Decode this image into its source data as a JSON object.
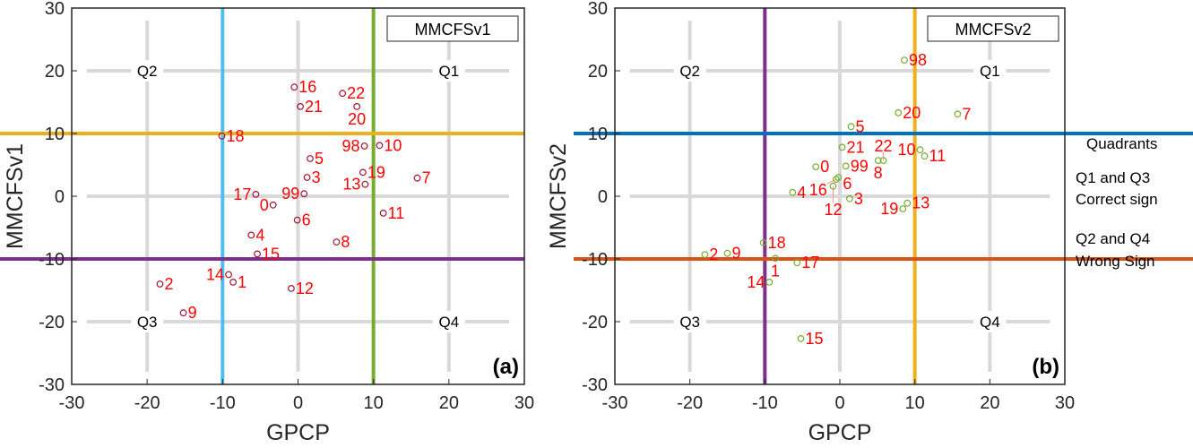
{
  "chart_data": [
    {
      "type": "scatter",
      "panel_label": "(a)",
      "legend": "MMCFSv1",
      "xlabel": "GPCP",
      "ylabel": "MMCFSv1",
      "xlim": [
        -30,
        30
      ],
      "ylim": [
        -30,
        30
      ],
      "xticks": [
        -30,
        -20,
        -10,
        0,
        10,
        20,
        30
      ],
      "yticks": [
        -30,
        -20,
        -10,
        0,
        10,
        20,
        30
      ],
      "quadrant_labels": [
        "Q1",
        "Q2",
        "Q3",
        "Q4"
      ],
      "marker_color": "#a2142f",
      "ref_lines": [
        {
          "axis": "x",
          "value": -10,
          "color": "#4dbeee"
        },
        {
          "axis": "x",
          "value": 10,
          "color": "#77ac30"
        },
        {
          "axis": "y",
          "value": 10,
          "color": "#edb120"
        },
        {
          "axis": "y",
          "value": -10,
          "color": "#7e2f8e"
        }
      ],
      "points": [
        {
          "label": "16",
          "x": -0.5,
          "y": 17.4
        },
        {
          "label": "22",
          "x": 5.9,
          "y": 16.4
        },
        {
          "label": "21",
          "x": 0.3,
          "y": 14.3
        },
        {
          "label": "20",
          "x": 7.8,
          "y": 14.3
        },
        {
          "label": "18",
          "x": -10.1,
          "y": 9.6
        },
        {
          "label": "98",
          "x": 8.8,
          "y": 8.0
        },
        {
          "label": "10",
          "x": 10.8,
          "y": 8.1
        },
        {
          "label": "5",
          "x": 1.6,
          "y": 6.0
        },
        {
          "label": "3",
          "x": 1.2,
          "y": 3.0
        },
        {
          "label": "19",
          "x": 8.6,
          "y": 3.8
        },
        {
          "label": "13",
          "x": 8.9,
          "y": 1.9
        },
        {
          "label": "7",
          "x": 15.8,
          "y": 2.9
        },
        {
          "label": "17",
          "x": -5.6,
          "y": 0.3
        },
        {
          "label": "99",
          "x": 0.8,
          "y": 0.4
        },
        {
          "label": "0",
          "x": -3.3,
          "y": -1.4
        },
        {
          "label": "6",
          "x": -0.1,
          "y": -3.8
        },
        {
          "label": "11",
          "x": 11.3,
          "y": -2.7
        },
        {
          "label": "4",
          "x": -6.2,
          "y": -6.2
        },
        {
          "label": "8",
          "x": 5.1,
          "y": -7.3
        },
        {
          "label": "15",
          "x": -5.4,
          "y": -9.2
        },
        {
          "label": "14",
          "x": -9.2,
          "y": -12.5
        },
        {
          "label": "1",
          "x": -8.6,
          "y": -13.7
        },
        {
          "label": "2",
          "x": -18.3,
          "y": -14.0
        },
        {
          "label": "12",
          "x": -0.9,
          "y": -14.7
        },
        {
          "label": "9",
          "x": -15.2,
          "y": -18.6
        }
      ]
    },
    {
      "type": "scatter",
      "panel_label": "(b)",
      "legend": "MMCFSv2",
      "xlabel": "GPCP",
      "ylabel": "MMCFSv2",
      "xlim": [
        -30,
        30
      ],
      "ylim": [
        -30,
        30
      ],
      "xticks": [
        -30,
        -20,
        -10,
        0,
        10,
        20,
        30
      ],
      "yticks": [
        -30,
        -20,
        -10,
        0,
        10,
        20,
        30
      ],
      "quadrant_labels": [
        "Q1",
        "Q2",
        "Q3",
        "Q4"
      ],
      "marker_color": "#77ac30",
      "ref_lines": [
        {
          "axis": "x",
          "value": -10,
          "color": "#7e2f8e"
        },
        {
          "axis": "x",
          "value": 10,
          "color": "#edb120"
        },
        {
          "axis": "y",
          "value": 10,
          "color": "#0072bd"
        },
        {
          "axis": "y",
          "value": -10,
          "color": "#d95319"
        }
      ],
      "points": [
        {
          "label": "98",
          "x": 8.6,
          "y": 21.7
        },
        {
          "label": "20",
          "x": 7.8,
          "y": 13.3
        },
        {
          "label": "7",
          "x": 15.7,
          "y": 13.1
        },
        {
          "label": "5",
          "x": 1.5,
          "y": 11.1
        },
        {
          "label": "21",
          "x": 0.3,
          "y": 7.8
        },
        {
          "label": "10",
          "x": 10.7,
          "y": 7.4
        },
        {
          "label": "11",
          "x": 11.3,
          "y": 6.4
        },
        {
          "label": "8",
          "x": 5.1,
          "y": 5.7
        },
        {
          "label": "22",
          "x": 5.8,
          "y": 5.7
        },
        {
          "label": "0",
          "x": -3.2,
          "y": 4.7
        },
        {
          "label": "99",
          "x": 0.8,
          "y": 4.8
        },
        {
          "label": "16",
          "x": -0.5,
          "y": 2.7
        },
        {
          "label": "6",
          "x": -0.2,
          "y": 3.0
        },
        {
          "label": "12",
          "x": -0.9,
          "y": 1.6
        },
        {
          "label": "4",
          "x": -6.3,
          "y": 0.6
        },
        {
          "label": "3",
          "x": 1.3,
          "y": -0.4
        },
        {
          "label": "13",
          "x": 9.0,
          "y": -1.1
        },
        {
          "label": "19",
          "x": 8.4,
          "y": -2.0
        },
        {
          "label": "18",
          "x": -10.2,
          "y": -7.4
        },
        {
          "label": "2",
          "x": -18.0,
          "y": -9.3
        },
        {
          "label": "9",
          "x": -15.0,
          "y": -9.1
        },
        {
          "label": "1",
          "x": -8.6,
          "y": -9.9
        },
        {
          "label": "17",
          "x": -5.7,
          "y": -10.6
        },
        {
          "label": "14",
          "x": -9.4,
          "y": -13.7
        },
        {
          "label": "15",
          "x": -5.2,
          "y": -22.7
        }
      ]
    }
  ],
  "side_legend": {
    "title": "Quadrants",
    "correct_line1": "Q1 and Q3",
    "correct_line2": "Correct sign",
    "wrong_line1": "Q2 and Q4",
    "wrong_line2": "Wrong Sign"
  }
}
